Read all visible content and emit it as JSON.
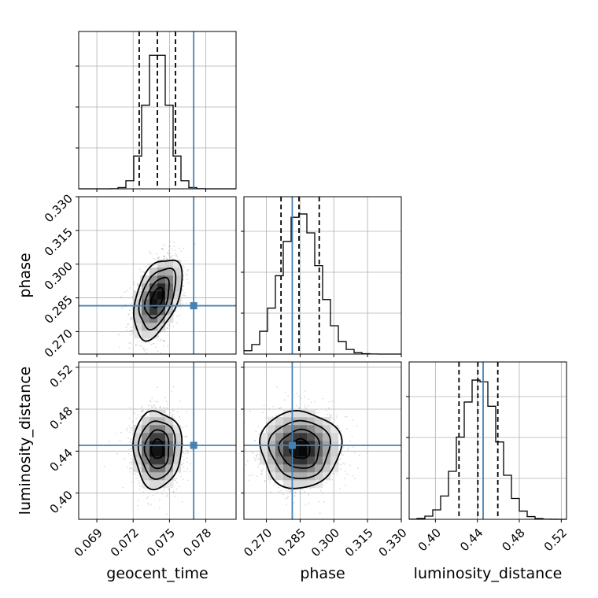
{
  "chart_data": {
    "type": "corner",
    "grid": true,
    "colors": {
      "truth": "#4682b4",
      "hist": "#000000",
      "quantile": "#000000",
      "grid": "#b0b0b0"
    },
    "parameters": [
      {
        "key": "geocent_time",
        "label": "geocent_time",
        "range": [
          0.0675,
          0.0805
        ],
        "ticks": [
          0.069,
          0.072,
          0.075,
          0.078
        ],
        "tick_labels": [
          "0.069",
          "0.072",
          "0.075",
          "0.078"
        ],
        "truth": 0.077,
        "quantiles": [
          0.0725,
          0.074,
          0.0755
        ],
        "peak": 0.074,
        "sigma": 0.00095
      },
      {
        "key": "phase",
        "label": "phase",
        "range": [
          0.26,
          0.33
        ],
        "ticks": [
          0.27,
          0.285,
          0.3,
          0.315,
          0.33
        ],
        "tick_labels": [
          "0.270",
          "0.285",
          "0.300",
          "0.315",
          "0.330"
        ],
        "truth": 0.2815,
        "quantiles": [
          0.2765,
          0.2845,
          0.2935
        ],
        "peak": 0.285,
        "sigma": 0.0085
      },
      {
        "key": "luminosity_distance",
        "label": "luminosity_distance",
        "range": [
          0.375,
          0.525
        ],
        "ticks": [
          0.4,
          0.44,
          0.48,
          0.52
        ],
        "tick_labels": [
          "0.40",
          "0.44",
          "0.48",
          "0.52"
        ],
        "truth": 0.4455,
        "quantiles": [
          0.4225,
          0.4405,
          0.4595
        ],
        "peak": 0.442,
        "sigma": 0.0175
      }
    ],
    "row_tick_labels": {
      "phase": [
        "0.270",
        "0.285",
        "0.300",
        "0.315",
        "0.330"
      ],
      "luminosity_distance": [
        "0.40",
        "0.44",
        "0.48",
        "0.52"
      ]
    },
    "correlation": {
      "geocent_time_phase": 0.45,
      "geocent_time_luminosity_distance": 0.0,
      "phase_luminosity_distance": 0.0
    }
  }
}
